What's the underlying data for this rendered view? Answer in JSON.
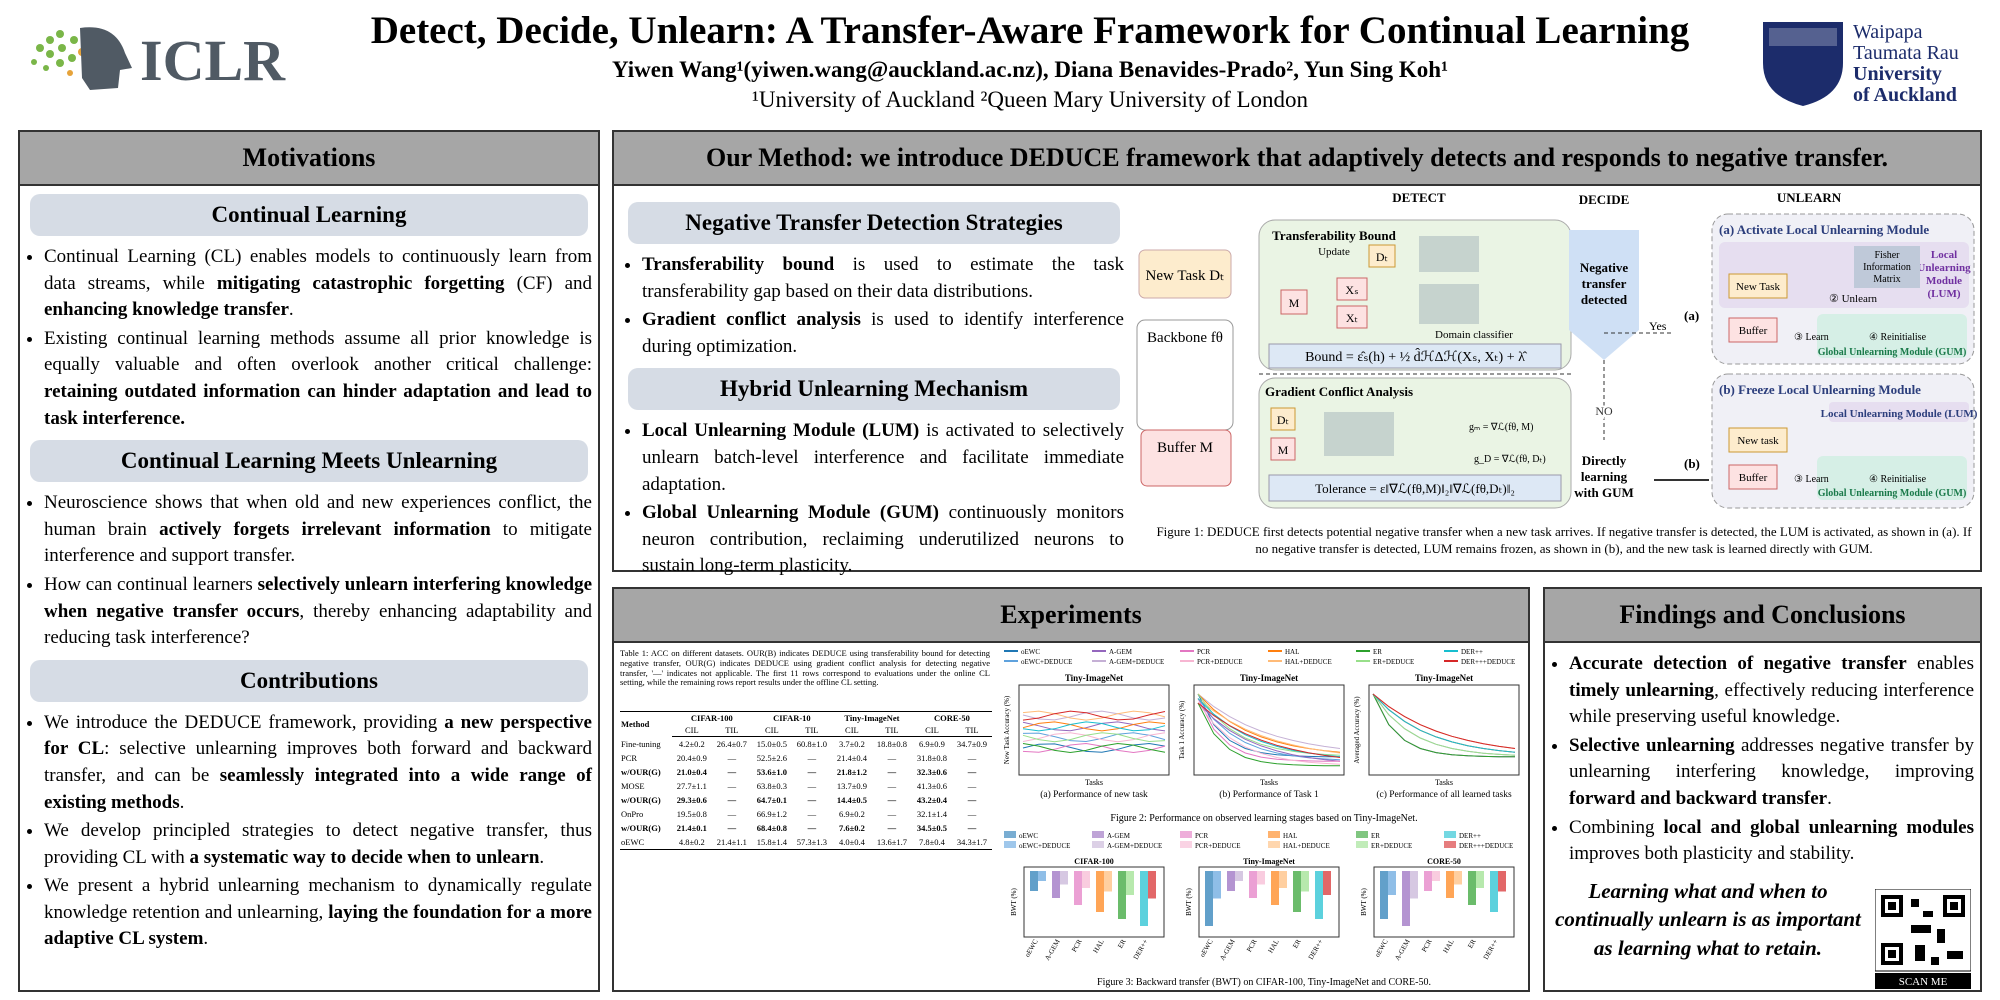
{
  "header": {
    "title": "Detect, Decide, Unlearn: A Transfer-Aware Framework for Continual Learning",
    "authors": "Yiwen Wang¹(yiwen.wang@auckland.ac.nz), Diana Benavides-Prado², Yun Sing Koh¹",
    "affiliations": "¹University of Auckland ²Queen Mary University of London",
    "left_logo": "ICLR",
    "right_logo": [
      "Waipapa",
      "Taumata Rau",
      "University",
      "of Auckland"
    ]
  },
  "motivations": {
    "heading": "Motivations",
    "sections": [
      {
        "title": "Continual Learning",
        "bullets": [
          [
            {
              "t": "Continual Learning (CL) enables models to continuously learn from data streams, while "
            },
            {
              "t": "mitigating catastrophic forgetting",
              "b": true
            },
            {
              "t": " (CF) and "
            },
            {
              "t": "enhancing knowledge transfer",
              "b": true
            },
            {
              "t": "."
            }
          ],
          [
            {
              "t": "Existing continual learning methods assume all prior knowledge is equally valuable and often overlook another critical challenge: "
            },
            {
              "t": "retaining outdated information can hinder adaptation and lead to task interference.",
              "b": true
            }
          ]
        ]
      },
      {
        "title": "Continual Learning Meets Unlearning",
        "bullets": [
          [
            {
              "t": "Neuroscience shows that when old and new experiences conflict, the human brain "
            },
            {
              "t": "actively forgets irrelevant information",
              "b": true
            },
            {
              "t": " to mitigate interference and support transfer."
            }
          ],
          [
            {
              "t": "How can continual learners "
            },
            {
              "t": "selectively unlearn interfering knowledge when negative transfer occurs",
              "b": true
            },
            {
              "t": ", thereby enhancing adaptability and reducing task interference?"
            }
          ]
        ]
      },
      {
        "title": "Contributions",
        "bullets": [
          [
            {
              "t": "We introduce the DEDUCE framework, providing "
            },
            {
              "t": "a new perspective for CL",
              "b": true
            },
            {
              "t": ": selective unlearning improves both forward and backward transfer, and can be "
            },
            {
              "t": "seamlessly integrated into a wide range of existing methods",
              "b": true
            },
            {
              "t": "."
            }
          ],
          [
            {
              "t": "We develop principled strategies to detect negative transfer, thus providing CL with "
            },
            {
              "t": "a systematic way to decide when to unlearn",
              "b": true
            },
            {
              "t": "."
            }
          ],
          [
            {
              "t": "We present a hybrid unlearning mechanism to dynamically regulate knowledge retention and unlearning, "
            },
            {
              "t": "laying the foundation for a more adaptive CL system",
              "b": true
            },
            {
              "t": "."
            }
          ]
        ]
      }
    ]
  },
  "method": {
    "heading": "Our Method: we introduce DEDUCE framework that adaptively detects and responds to negative transfer.",
    "sections": [
      {
        "title": "Negative Transfer Detection Strategies",
        "bullets": [
          [
            {
              "t": "Transferability bound",
              "b": true
            },
            {
              "t": " is used to estimate the task transferability gap based on their data distributions."
            }
          ],
          [
            {
              "t": "Gradient conflict analysis",
              "b": true
            },
            {
              "t": " is used to identify interference during optimization."
            }
          ]
        ]
      },
      {
        "title": "Hybrid Unlearning Mechanism",
        "bullets": [
          [
            {
              "t": "Local Unlearning Module (LUM)",
              "b": true
            },
            {
              "t": " is activated to selectively unlearn batch-level interference and facilitate immediate adaptation."
            }
          ],
          [
            {
              "t": "Global Unlearning Module (GUM)",
              "b": true
            },
            {
              "t": " continuously monitors neuron contribution, reclaiming underutilized neurons to sustain long-term plasticity."
            }
          ]
        ]
      }
    ],
    "diagram": {
      "stages": [
        "DETECT",
        "DECIDE",
        "UNLEARN"
      ],
      "new_task": "New Task Dₜ",
      "backbone": "Backbone fθ",
      "buffer": "Buffer M",
      "tb": "Transferability Bound",
      "update": "Update",
      "dt": "Dₜ",
      "m": "M",
      "xs": "Xₛ",
      "xt": "Xₜ",
      "domain": "Domain classifier",
      "bound": "Bound = ε̂ₛ(h) + ½ d̂ℋΔℋ(Xₛ, Xₜ) + λ̂",
      "gca": "Gradient Conflict Analysis",
      "gm": "gₘ = ∇ℒ(fθ, M)",
      "gd": "g_D = ∇ℒ(fθ, Dₜ)",
      "tol": "Tolerance = ε‖∇ℒ(fθ,M)‖₂‖∇ℒ(fθ,Dₜ)‖₂",
      "neg": [
        "Negative",
        "transfer",
        "detected"
      ],
      "yes": "Yes",
      "no": "NO",
      "direct": [
        "Directly",
        "learning",
        "with GUM"
      ],
      "a": "(a)",
      "b": "(b)",
      "activate": "(a) Activate Local Unlearning Module",
      "lum": [
        "Local",
        "Unlearning",
        "Module",
        "(LUM)"
      ],
      "fisher": [
        "Fisher",
        "Information",
        "Matrix"
      ],
      "newtask": "New Task",
      "unlearn": "② Unlearn",
      "buf": "Buffer",
      "learn": "③ Learn",
      "reinit": "④ Reinitialise",
      "gum": "Global Unlearning Module (GUM)",
      "freeze": "(b) Freeze Local Unlearning Module",
      "lum2": "Local Unlearning Module (LUM)",
      "newtask2": "New task"
    },
    "caption": "Figure 1: DEDUCE first detects potential negative transfer when a new task arrives. If negative transfer is detected, the LUM is activated, as shown in (a). If no negative transfer is detected, LUM remains frozen, as shown in (b), and the new task is learned directly with GUM."
  },
  "experiments": {
    "heading": "Experiments",
    "table": {
      "caption": "Table 1: ACC on different datasets. OUR(B) indicates DEDUCE using transferability bound for detecting negative transfer, OUR(G) indicates DEDUCE using gradient conflict analysis for detecting negative transfer, '—' indicates not applicable. The first 11 rows correspond to evaluations under the online CL setting, while the remaining rows report results under the offline CL setting.",
      "datasets": [
        "CIFAR-100",
        "CIFAR-10",
        "Tiny-ImageNet",
        "CORE-50"
      ],
      "sub": [
        "CIL",
        "TIL"
      ],
      "method": "Method",
      "rows": [
        [
          "Fine-tuning",
          "4.2±0.2",
          "26.4±0.7",
          "15.0±0.5",
          "60.8±1.0",
          "3.7±0.2",
          "18.8±0.8",
          "6.9±0.9",
          "34.7±0.9"
        ],
        [
          "PCR",
          "20.4±0.9",
          "—",
          "52.5±2.6",
          "—",
          "21.4±0.4",
          "—",
          "31.8±0.8",
          "—"
        ],
        [
          "w/OUR(G)",
          "21.0±0.4",
          "—",
          "53.6±1.0",
          "—",
          "21.8±1.2",
          "—",
          "32.3±0.6",
          "—"
        ],
        [
          "MOSE",
          "27.7±1.1",
          "—",
          "63.8±0.3",
          "—",
          "13.7±0.9",
          "—",
          "41.3±0.6",
          "—"
        ],
        [
          "w/OUR(G)",
          "29.3±0.6",
          "—",
          "64.7±0.1",
          "—",
          "14.4±0.5",
          "—",
          "43.2±0.4",
          "—"
        ],
        [
          "OnPro",
          "19.5±0.8",
          "—",
          "66.9±1.2",
          "—",
          "6.9±0.2",
          "—",
          "32.1±1.4",
          "—"
        ],
        [
          "w/OUR(G)",
          "21.4±0.1",
          "—",
          "68.4±0.8",
          "—",
          "7.6±0.2",
          "—",
          "34.5±0.5",
          "—"
        ],
        [
          "oEWC",
          "4.8±0.2",
          "21.4±1.1",
          "15.8±1.4",
          "57.3±1.3",
          "4.0±0.4",
          "13.6±1.7",
          "7.8±0.4",
          "34.3±1.7"
        ]
      ]
    },
    "legend": [
      {
        "name": "oEWC",
        "color": "#1f77b4"
      },
      {
        "name": "oEWC+DEDUCE",
        "color": "#5fa2dd"
      },
      {
        "name": "A-GEM",
        "color": "#9467bd"
      },
      {
        "name": "A-GEM+DEDUCE",
        "color": "#c5b0d5"
      },
      {
        "name": "PCR",
        "color": "#e377c2"
      },
      {
        "name": "PCR+DEDUCE",
        "color": "#f7b6d2"
      },
      {
        "name": "HAL",
        "color": "#ff7f0e"
      },
      {
        "name": "HAL+DEDUCE",
        "color": "#ffbb78"
      },
      {
        "name": "ER",
        "color": "#2ca02c"
      },
      {
        "name": "ER+DEDUCE",
        "color": "#98df8a"
      },
      {
        "name": "DER++",
        "color": "#17becf"
      },
      {
        "name": "DER+++DEDUCE",
        "color": "#d62728"
      }
    ],
    "fig2": {
      "title": "Tiny-ImageNet",
      "xlabel": "Tasks",
      "ylabels": [
        "New Task Accuracy (%)",
        "Task 1 Accuracy (%)",
        "Averaged Accuracy (%)"
      ],
      "subcaptions": [
        "(a) Performance of new task",
        "(b) Performance of Task 1",
        "(c) Performance of all learned tasks"
      ],
      "caption": "Figure 2: Performance on observed learning stages based on Tiny-ImageNet."
    },
    "fig3": {
      "titles": [
        "CIFAR-100",
        "Tiny-ImageNet",
        "CORE-50"
      ],
      "ylabel": "BWT (%)",
      "methods": [
        "oEWC",
        "A-GEM",
        "PCR",
        "HAL",
        "ER",
        "DER++"
      ],
      "caption": "Figure 3: Backward transfer (BWT) on CIFAR-100, Tiny-ImageNet and CORE-50."
    }
  },
  "findings": {
    "heading": "Findings and Conclusions",
    "bullets": [
      [
        {
          "t": "Accurate detection of negative transfer",
          "b": true
        },
        {
          "t": " enables "
        },
        {
          "t": "timely unlearning",
          "b": true
        },
        {
          "t": ", effectively reducing interference while preserving useful knowledge."
        }
      ],
      [
        {
          "t": "Selective unlearning",
          "b": true
        },
        {
          "t": " addresses negative transfer by unlearning interfering knowledge, improving "
        },
        {
          "t": "forward and backward transfer",
          "b": true
        },
        {
          "t": "."
        }
      ],
      [
        {
          "t": "Combining "
        },
        {
          "t": "local and global unlearning modules",
          "b": true
        },
        {
          "t": " improves both plasticity and stability."
        }
      ]
    ],
    "quote": "Learning what and when to continually unlearn is as important as learning what to retain.",
    "scan": "SCAN ME"
  }
}
